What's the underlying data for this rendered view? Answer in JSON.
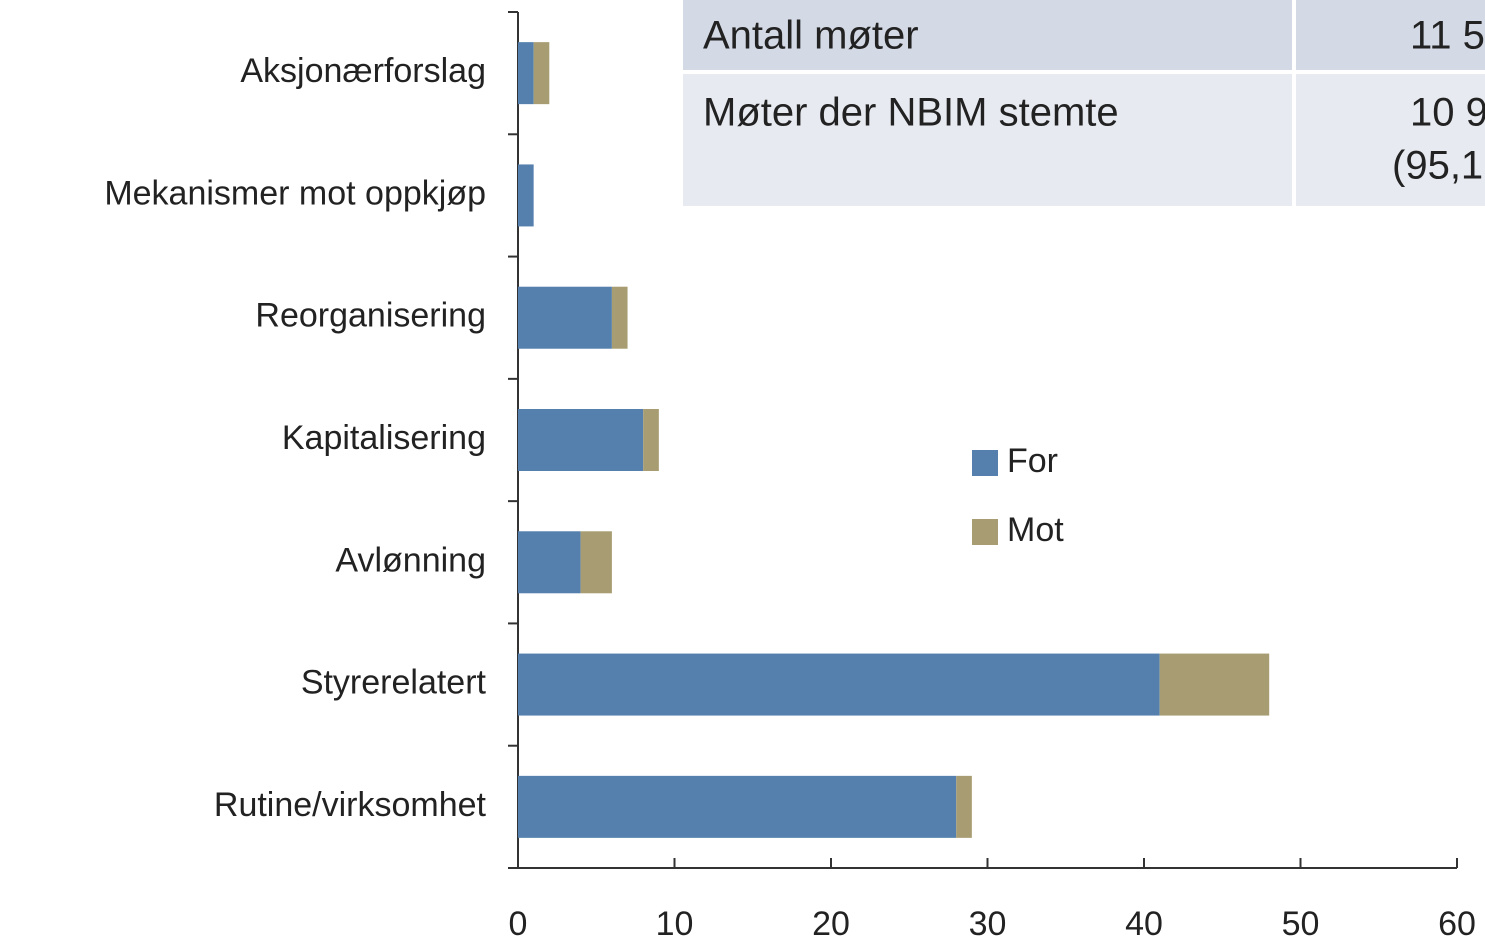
{
  "chart_data": {
    "type": "stacked-barh",
    "categories": [
      "Aksjonærforslag",
      "Mekanismer mot oppkjøp",
      "Reorganisering",
      "Kapitalisering",
      "Avlønning",
      "Styrerelatert",
      "Rutine/virksomhet"
    ],
    "series": [
      {
        "name": "For",
        "color": "#5580ad",
        "values": [
          1,
          1,
          6,
          8,
          4,
          41,
          28
        ]
      },
      {
        "name": "Mot",
        "color": "#a89d72",
        "values": [
          1,
          0,
          1,
          1,
          2,
          7,
          1
        ]
      }
    ],
    "xlim": [
      0,
      60
    ],
    "xticks": [
      0,
      10,
      20,
      30,
      40,
      50,
      60
    ]
  },
  "table": {
    "rows": [
      [
        "Antall møter",
        "11 5"
      ],
      [
        "Møter der NBIM stemte",
        "10 9",
        "(95,1"
      ]
    ]
  }
}
